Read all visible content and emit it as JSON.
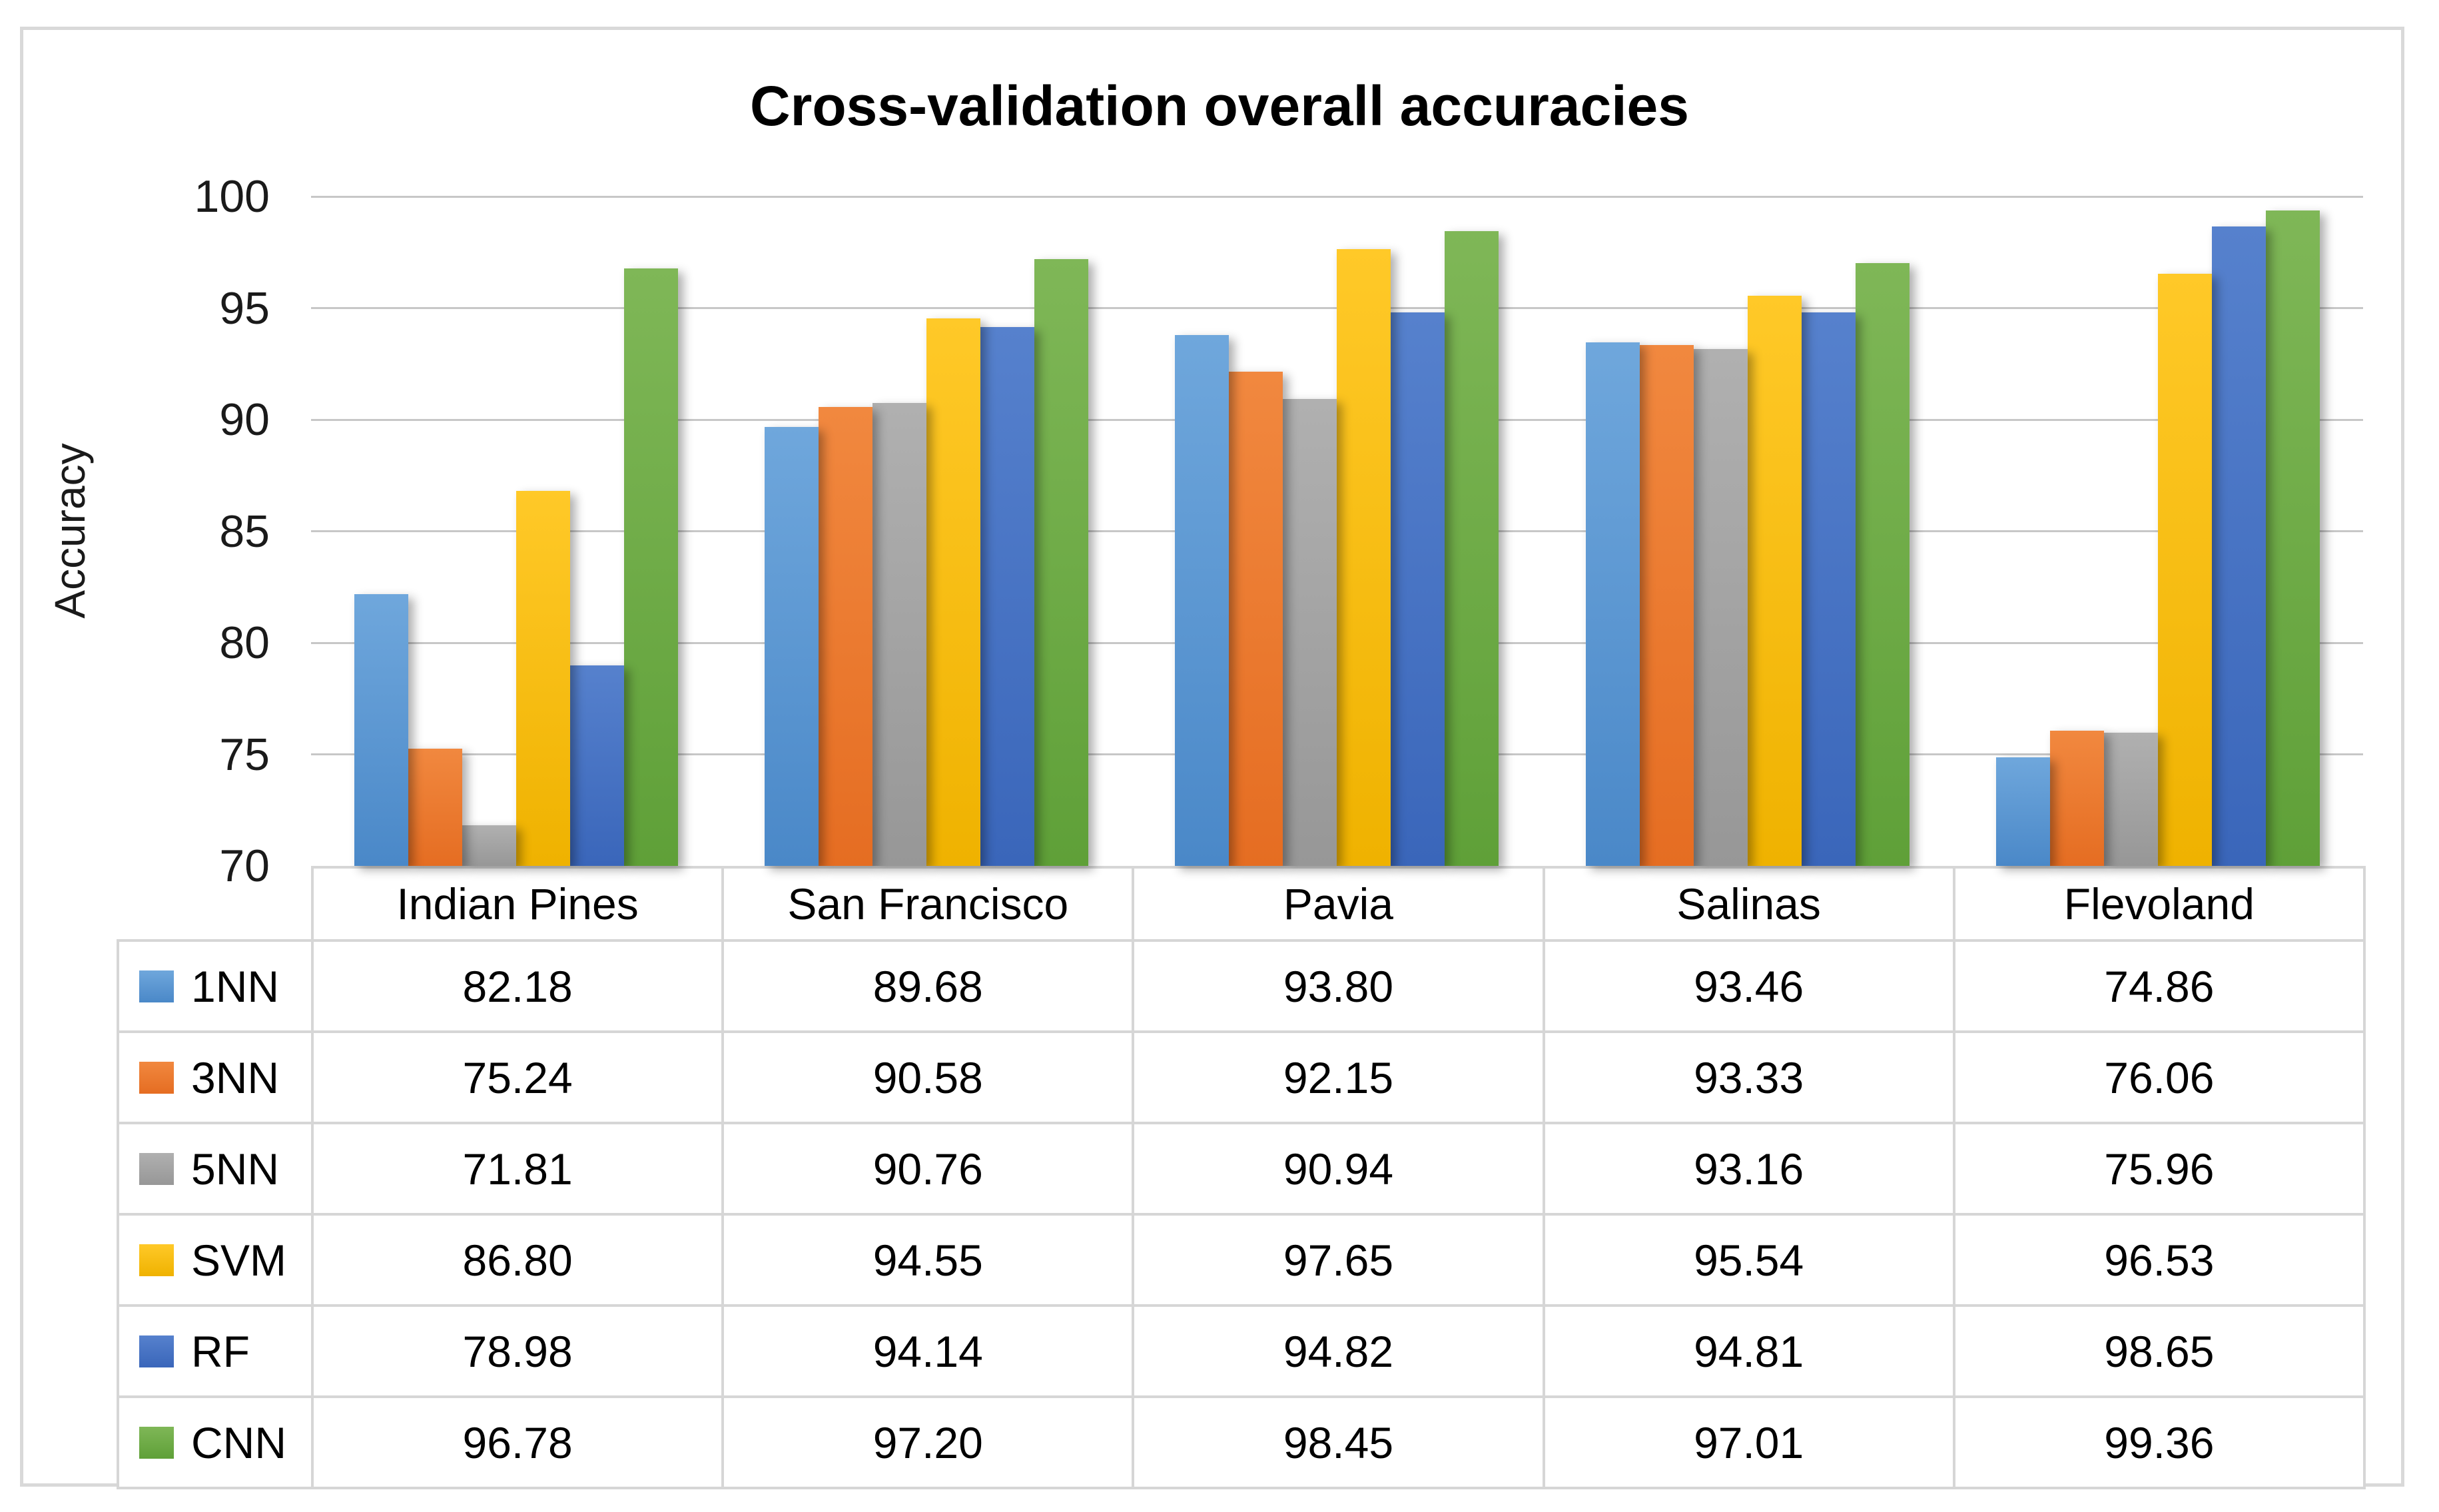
{
  "frame": {
    "border_color": "#D9D9D9",
    "gridline_color": "#C7C7C7",
    "table_border_color": "#D6D6D6"
  },
  "chart_data": {
    "type": "bar",
    "title": "Cross-validation overall accuracies",
    "xlabel": "",
    "ylabel": "Accuracy",
    "ylim": [
      70,
      100
    ],
    "yticks": [
      100,
      95,
      90,
      85,
      80,
      75,
      70
    ],
    "grid": true,
    "legend_position": "table-left-column",
    "value_decimals": 2,
    "categories": [
      "Indian Pines",
      "San Francisco",
      "Pavia",
      "Salinas",
      "Flevoland"
    ],
    "series": [
      {
        "name": "1NN",
        "color": "#5B9BD5",
        "gradient": [
          "#6FA7DC",
          "#4A88C8"
        ],
        "values": [
          82.18,
          89.68,
          93.8,
          93.46,
          74.86
        ]
      },
      {
        "name": "3NN",
        "color": "#ED7D31",
        "gradient": [
          "#F1883F",
          "#E56D22"
        ],
        "values": [
          75.24,
          90.58,
          92.15,
          93.33,
          76.06
        ]
      },
      {
        "name": "5NN",
        "color": "#A5A5A5",
        "gradient": [
          "#B0B0B0",
          "#979797"
        ],
        "values": [
          71.81,
          90.76,
          90.94,
          93.16,
          75.96
        ]
      },
      {
        "name": "SVM",
        "color": "#FFC000",
        "gradient": [
          "#FFC928",
          "#EFB200"
        ],
        "values": [
          86.8,
          94.55,
          97.65,
          95.54,
          96.53
        ]
      },
      {
        "name": "RF",
        "color": "#4472C4",
        "gradient": [
          "#5681CD",
          "#3A66BA"
        ],
        "values": [
          78.98,
          94.14,
          94.82,
          94.81,
          98.65
        ]
      },
      {
        "name": "CNN",
        "color": "#70AD47",
        "gradient": [
          "#7FB757",
          "#5FA038"
        ],
        "values": [
          96.78,
          97.2,
          98.45,
          97.01,
          99.36
        ]
      }
    ]
  }
}
